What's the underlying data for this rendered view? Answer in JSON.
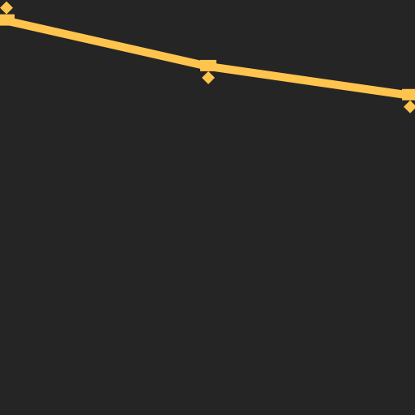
{
  "chart_data": {
    "type": "line",
    "x": [
      0,
      1,
      2
    ],
    "series": [
      {
        "values": [
          0.95,
          0.84,
          0.77
        ],
        "color": "#FFC44D"
      }
    ],
    "xlim": [
      0,
      2
    ],
    "ylim": [
      0,
      1
    ],
    "grid": false,
    "legend": "none"
  },
  "colors": {
    "background": "#252525"
  }
}
